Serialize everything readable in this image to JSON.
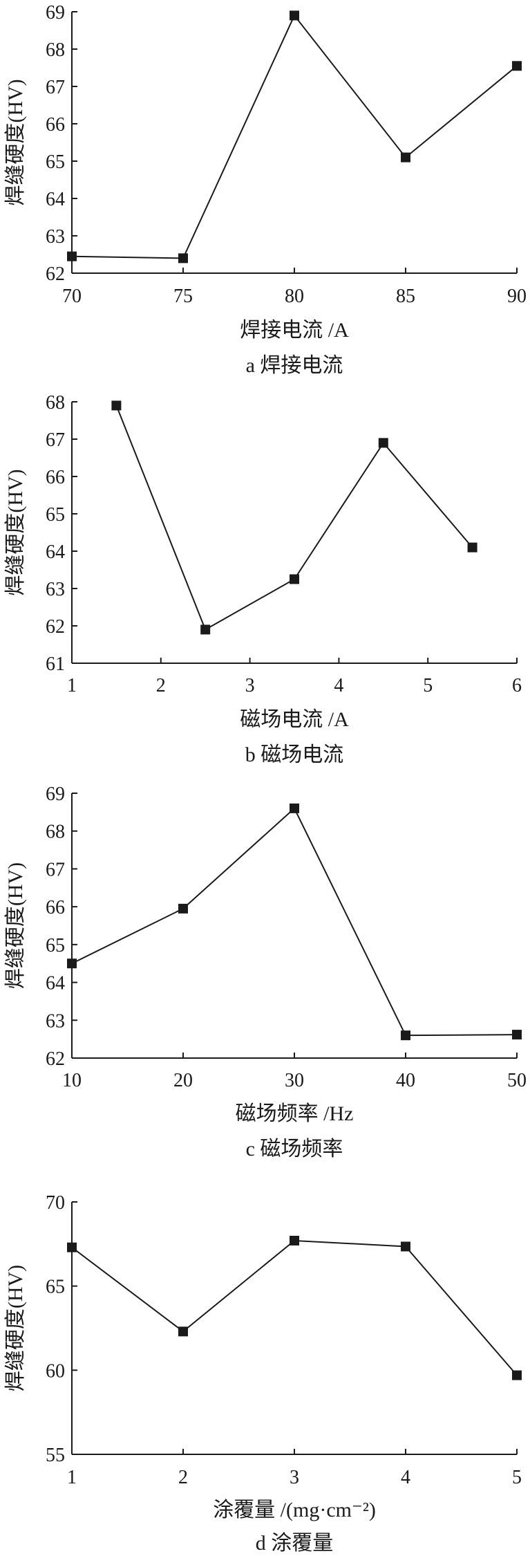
{
  "chart_data": [
    {
      "type": "line",
      "xlabel": "焊接电流 /A",
      "ylabel": "焊缝硬度(HV)",
      "caption": "a 焊接电流",
      "xlim": [
        70,
        90
      ],
      "ylim": [
        62,
        69
      ],
      "xticks": [
        "70",
        "75",
        "80",
        "85",
        "90"
      ],
      "yticks": [
        "62",
        "63",
        "64",
        "65",
        "66",
        "67",
        "68",
        "69"
      ],
      "x": [
        70,
        75,
        80,
        85,
        90
      ],
      "values": [
        62.45,
        62.4,
        68.9,
        65.1,
        67.55
      ],
      "grid": false,
      "marker": "square",
      "color": "#1a1a1a"
    },
    {
      "type": "line",
      "xlabel": "磁场电流 /A",
      "ylabel": "焊缝硬度(HV)",
      "caption": "b 磁场电流",
      "xlim": [
        1,
        6
      ],
      "ylim": [
        61,
        68
      ],
      "xticks": [
        "1",
        "2",
        "3",
        "4",
        "5",
        "6"
      ],
      "yticks": [
        "61",
        "62",
        "63",
        "64",
        "65",
        "66",
        "67",
        "68"
      ],
      "x": [
        1.5,
        2.5,
        3.5,
        4.5,
        5.5
      ],
      "values": [
        67.9,
        61.9,
        63.25,
        66.9,
        64.1
      ],
      "grid": false,
      "marker": "square",
      "color": "#1a1a1a"
    },
    {
      "type": "line",
      "xlabel": "磁场频率 /Hz",
      "ylabel": "焊缝硬度(HV)",
      "caption": "c 磁场频率",
      "xlim": [
        10,
        50
      ],
      "ylim": [
        62,
        69
      ],
      "xticks": [
        "10",
        "20",
        "30",
        "40",
        "50"
      ],
      "yticks": [
        "62",
        "63",
        "64",
        "65",
        "66",
        "67",
        "68",
        "69"
      ],
      "x": [
        10,
        20,
        30,
        40,
        50
      ],
      "values": [
        64.5,
        65.95,
        68.6,
        62.6,
        62.62
      ],
      "grid": false,
      "marker": "square",
      "color": "#1a1a1a"
    },
    {
      "type": "line",
      "xlabel": "涂覆量 /(mg·cm⁻²)",
      "ylabel": "焊缝硬度(HV)",
      "caption": "d 涂覆量",
      "xlim": [
        1,
        5
      ],
      "ylim": [
        55,
        70
      ],
      "xticks": [
        "1",
        "2",
        "3",
        "4",
        "5"
      ],
      "yticks": [
        "55",
        "60",
        "65",
        "70"
      ],
      "x": [
        1,
        2,
        3,
        4,
        5
      ],
      "values": [
        67.3,
        62.3,
        67.7,
        67.35,
        59.7
      ],
      "grid": false,
      "marker": "square",
      "color": "#1a1a1a"
    }
  ]
}
